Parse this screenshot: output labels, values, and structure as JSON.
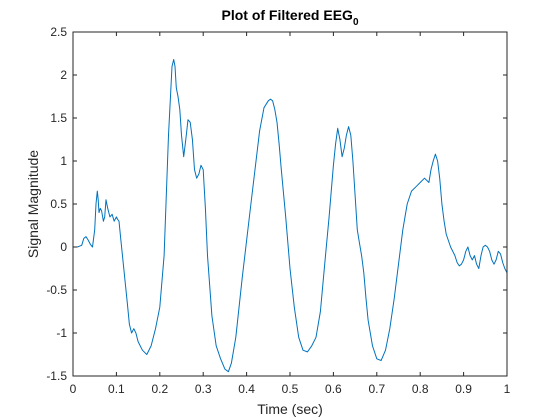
{
  "chart_data": {
    "type": "line",
    "title": {
      "base": "Plot of Filtered EEG",
      "subscript": "0"
    },
    "xlabel": "Time (sec)",
    "ylabel": "Signal Magnitude",
    "xlim": [
      0,
      1
    ],
    "ylim": [
      -1.5,
      2.5
    ],
    "xticks": [
      0,
      0.1,
      0.2,
      0.3,
      0.4,
      0.5,
      0.6,
      0.7,
      0.8,
      0.9,
      1
    ],
    "xtick_labels": [
      "0",
      "0.1",
      "0.2",
      "0.3",
      "0.4",
      "0.5",
      "0.6",
      "0.7",
      "0.8",
      "0.9",
      "1"
    ],
    "yticks": [
      -1.5,
      -1,
      -0.5,
      0,
      0.5,
      1,
      1.5,
      2,
      2.5
    ],
    "ytick_labels": [
      "-1.5",
      "-1",
      "-0.5",
      "0",
      "0.5",
      "1",
      "1.5",
      "2",
      "2.5"
    ],
    "grid": false,
    "line_color": "#0072BD",
    "series": [
      {
        "x": [
          0,
          0.01,
          0.02,
          0.025,
          0.03,
          0.035,
          0.04,
          0.045,
          0.05,
          0.053,
          0.056,
          0.058,
          0.06,
          0.063,
          0.066,
          0.07,
          0.073,
          0.076,
          0.08,
          0.085,
          0.09,
          0.095,
          0.1,
          0.103,
          0.106,
          0.11,
          0.115,
          0.12,
          0.125,
          0.13,
          0.135,
          0.14,
          0.145,
          0.15,
          0.16,
          0.17,
          0.18,
          0.19,
          0.2,
          0.21,
          0.215,
          0.22,
          0.225,
          0.228,
          0.232,
          0.235,
          0.238,
          0.242,
          0.246,
          0.25,
          0.255,
          0.26,
          0.265,
          0.27,
          0.275,
          0.28,
          0.285,
          0.29,
          0.295,
          0.3,
          0.305,
          0.31,
          0.32,
          0.33,
          0.34,
          0.35,
          0.358,
          0.365,
          0.375,
          0.39,
          0.41,
          0.43,
          0.44,
          0.45,
          0.455,
          0.46,
          0.465,
          0.47,
          0.475,
          0.48,
          0.49,
          0.5,
          0.51,
          0.52,
          0.53,
          0.54,
          0.55,
          0.56,
          0.57,
          0.58,
          0.59,
          0.6,
          0.605,
          0.61,
          0.615,
          0.62,
          0.625,
          0.63,
          0.635,
          0.64,
          0.645,
          0.65,
          0.655,
          0.66,
          0.665,
          0.67,
          0.675,
          0.68,
          0.69,
          0.7,
          0.71,
          0.72,
          0.73,
          0.74,
          0.75,
          0.76,
          0.77,
          0.78,
          0.79,
          0.8,
          0.81,
          0.82,
          0.825,
          0.83,
          0.835,
          0.84,
          0.845,
          0.85,
          0.855,
          0.86,
          0.87,
          0.88,
          0.885,
          0.89,
          0.895,
          0.9,
          0.905,
          0.91,
          0.915,
          0.92,
          0.925,
          0.93,
          0.935,
          0.94,
          0.945,
          0.95,
          0.955,
          0.96,
          0.965,
          0.97,
          0.975,
          0.98,
          0.985,
          0.99,
          0.995,
          1
        ],
        "y": [
          0,
          0,
          0.02,
          0.1,
          0.12,
          0.08,
          0.03,
          0,
          0.2,
          0.5,
          0.65,
          0.55,
          0.4,
          0.45,
          0.42,
          0.3,
          0.35,
          0.55,
          0.45,
          0.35,
          0.38,
          0.3,
          0.35,
          0.32,
          0.3,
          0.1,
          -0.15,
          -0.4,
          -0.65,
          -0.9,
          -1.0,
          -0.95,
          -1.0,
          -1.1,
          -1.2,
          -1.25,
          -1.15,
          -0.95,
          -0.7,
          -0.1,
          0.6,
          1.3,
          1.8,
          2.1,
          2.18,
          2.1,
          1.85,
          1.75,
          1.6,
          1.3,
          1.05,
          1.25,
          1.48,
          1.45,
          1.25,
          0.9,
          0.8,
          0.85,
          0.95,
          0.9,
          0.45,
          -0.1,
          -0.8,
          -1.15,
          -1.3,
          -1.42,
          -1.45,
          -1.35,
          -1.05,
          -0.35,
          0.5,
          1.35,
          1.62,
          1.7,
          1.72,
          1.7,
          1.6,
          1.45,
          1.2,
          0.9,
          0.35,
          -0.25,
          -0.7,
          -1.05,
          -1.2,
          -1.22,
          -1.15,
          -1.05,
          -0.75,
          -0.2,
          0.35,
          0.95,
          1.2,
          1.38,
          1.25,
          1.05,
          1.15,
          1.3,
          1.4,
          1.3,
          1.0,
          0.6,
          0.2,
          0.05,
          -0.1,
          -0.3,
          -0.6,
          -0.85,
          -1.15,
          -1.3,
          -1.32,
          -1.2,
          -0.95,
          -0.6,
          -0.2,
          0.2,
          0.5,
          0.65,
          0.7,
          0.75,
          0.8,
          0.75,
          0.9,
          1.0,
          1.08,
          1.0,
          0.8,
          0.5,
          0.3,
          0.15,
          0,
          -0.1,
          -0.18,
          -0.22,
          -0.2,
          -0.15,
          -0.05,
          0.0,
          -0.1,
          -0.15,
          -0.1,
          -0.2,
          -0.25,
          -0.1,
          0.0,
          0.02,
          0.0,
          -0.05,
          -0.15,
          -0.2,
          -0.15,
          -0.05,
          -0.08,
          -0.18,
          -0.25,
          -0.3
        ]
      }
    ]
  }
}
